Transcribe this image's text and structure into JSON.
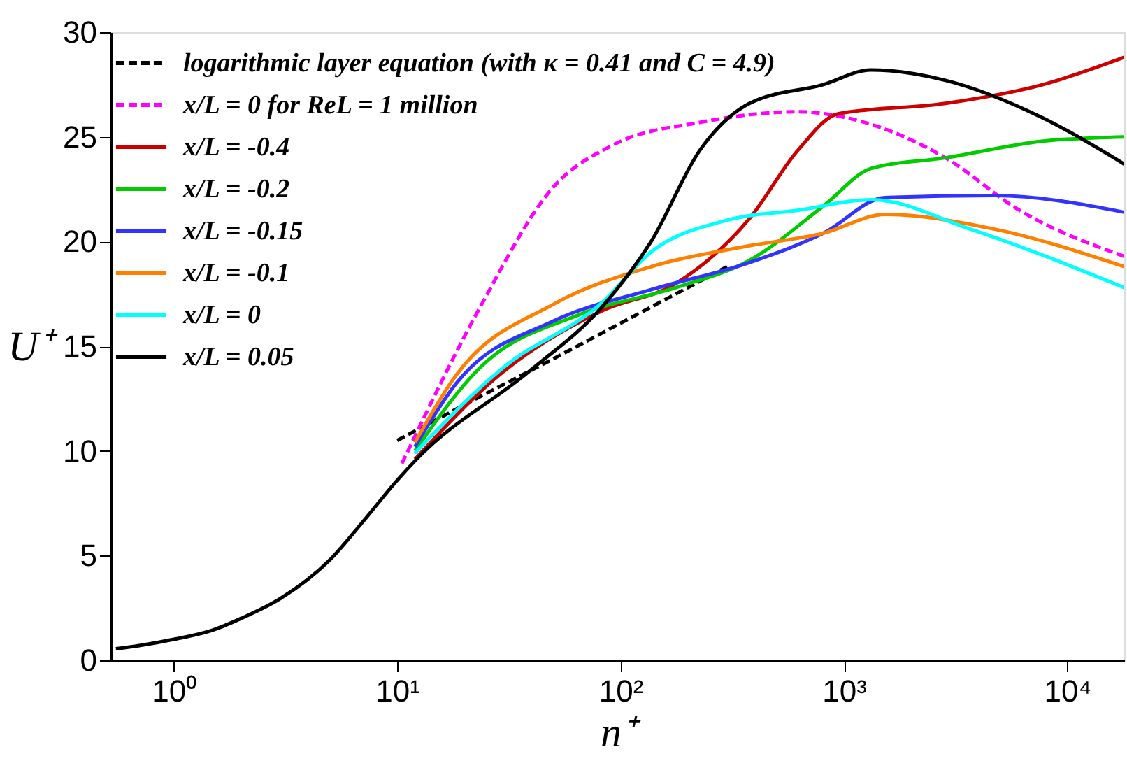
{
  "chart_data": {
    "type": "line",
    "xlabel": "n⁺",
    "ylabel": "U⁺",
    "log": "x",
    "xlim": [
      0.52,
      18000
    ],
    "ylim": [
      0,
      30
    ],
    "xticks": [
      {
        "value": 1,
        "label": "10⁰"
      },
      {
        "value": 10,
        "label": "10¹"
      },
      {
        "value": 100,
        "label": "10²"
      },
      {
        "value": 1000,
        "label": "10³"
      },
      {
        "value": 10000,
        "label": "10⁴"
      }
    ],
    "yticks": [
      0,
      5,
      10,
      15,
      20,
      25,
      30
    ],
    "grid": false,
    "legend": "top left",
    "marker": "none",
    "series": [
      {
        "name": "logarithmic layer equation (with κ = 0.41 and C = 4.9)",
        "color": "#000000",
        "line_style": "dashed",
        "x": [
          10,
          20,
          50,
          100,
          200,
          300
        ],
        "values": [
          10.5,
          12.2,
          14.4,
          16.1,
          17.8,
          18.8
        ]
      },
      {
        "name": "x/L = 0 for ReL = 1 million",
        "color": "#ff00ff",
        "line_style": "dashed",
        "x": [
          10.5,
          23.6,
          50,
          92,
          228,
          627,
          1040,
          2850,
          6100,
          18000
        ],
        "values": [
          9.4,
          16.9,
          22.6,
          24.6,
          25.7,
          26.2,
          25.9,
          24.0,
          21.5,
          19.3
        ]
      },
      {
        "name": "x/L = -0.4",
        "color": "#cc0000",
        "line_style": "solid",
        "x": [
          12,
          30,
          83,
          177,
          378,
          627,
          940,
          2850,
          7800,
          18000
        ],
        "values": [
          9.6,
          13.8,
          16.7,
          18.0,
          21.1,
          24.4,
          26.1,
          26.6,
          27.5,
          28.8
        ]
      },
      {
        "name": "x/L = -0.2",
        "color": "#00cc00",
        "line_style": "solid",
        "x": [
          12,
          23.6,
          65,
          177,
          378,
          810,
          1330,
          2850,
          7800,
          18000
        ],
        "values": [
          10.0,
          14.0,
          16.5,
          17.8,
          19.1,
          21.7,
          23.5,
          24.0,
          24.8,
          25.0
        ]
      },
      {
        "name": "x/L = -0.15",
        "color": "#3333ff",
        "line_style": "solid",
        "x": [
          12,
          18.3,
          50,
          137,
          378,
          810,
          1530,
          4700,
          18000
        ],
        "values": [
          10.2,
          13.2,
          16.2,
          17.7,
          19.0,
          20.4,
          22.1,
          22.2,
          21.4
        ]
      },
      {
        "name": "x/L = -0.1",
        "color": "#ff8000",
        "line_style": "solid",
        "x": [
          12,
          18.3,
          50,
          137,
          378,
          810,
          1530,
          4700,
          18000
        ],
        "values": [
          10.4,
          13.6,
          17.0,
          18.8,
          19.8,
          20.4,
          21.3,
          20.6,
          18.8
        ]
      },
      {
        "name": "x/L = 0",
        "color": "#00ffff",
        "line_style": "solid",
        "x": [
          12,
          30,
          83,
          137,
          295,
          627,
          1330,
          3670,
          18000
        ],
        "values": [
          9.9,
          14.0,
          17.1,
          19.5,
          21.0,
          21.5,
          22.0,
          20.6,
          17.8
        ]
      },
      {
        "name": "x/L = 0.05",
        "color": "#000000",
        "line_style": "solid",
        "x": [
          0.55,
          0.7,
          1,
          1.5,
          2,
          3,
          5,
          7,
          10,
          12.2,
          39,
          83,
          137,
          228,
          378,
          810,
          1320,
          2850,
          7800,
          18000
        ],
        "values": [
          0.55,
          0.7,
          1.0,
          1.45,
          2.0,
          2.95,
          4.8,
          6.6,
          8.6,
          9.6,
          13.8,
          16.9,
          20.0,
          24.4,
          26.6,
          27.5,
          28.2,
          27.7,
          25.9,
          23.7
        ]
      }
    ]
  }
}
